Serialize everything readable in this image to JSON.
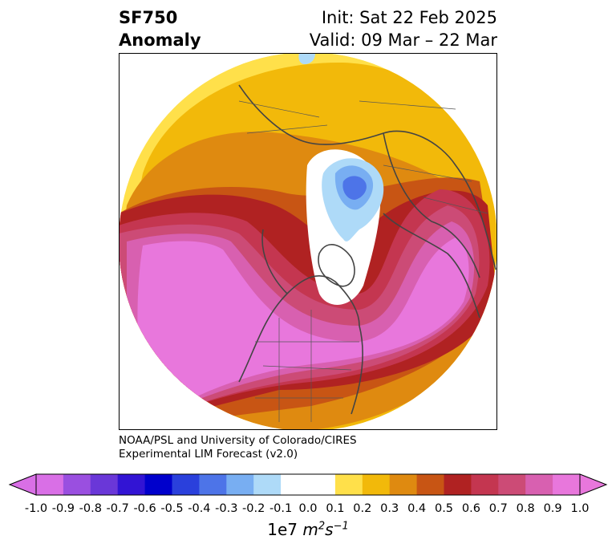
{
  "title": {
    "variable": "SF750",
    "kind": "Anomaly",
    "init": "Init: Sat 22 Feb 2025",
    "valid": "Valid: 09 Mar – 22 Mar"
  },
  "credit": {
    "line1": "NOAA/PSL and University of Colorado/CIRES",
    "line2": "Experimental LIM Forecast (v2.0)"
  },
  "colorbar": {
    "ticks": [
      "-1.0",
      "-0.9",
      "-0.8",
      "-0.7",
      "-0.6",
      "-0.5",
      "-0.4",
      "-0.3",
      "-0.2",
      "-0.1",
      "0.0",
      "0.1",
      "0.2",
      "0.3",
      "0.4",
      "0.5",
      "0.6",
      "0.7",
      "0.8",
      "0.9",
      "1.0"
    ],
    "colors": [
      "#d96fe6",
      "#9a4fe0",
      "#6a37d8",
      "#3214d4",
      "#0000cc",
      "#2a40dc",
      "#4d74e8",
      "#78aef2",
      "#aedaf8",
      "#ffffff",
      "#ffffff",
      "#ffe04a",
      "#f2b90a",
      "#df8a10",
      "#c85514",
      "#b02222",
      "#c43650",
      "#cc4b76",
      "#d860b0",
      "#e877dc"
    ],
    "under_color": "#d96fe6",
    "over_color": "#e877dc",
    "unit_prefix": "1e7 ",
    "unit_m": "m",
    "unit_m_exp": "2",
    "unit_s": "s",
    "unit_s_exp": "−1"
  }
}
